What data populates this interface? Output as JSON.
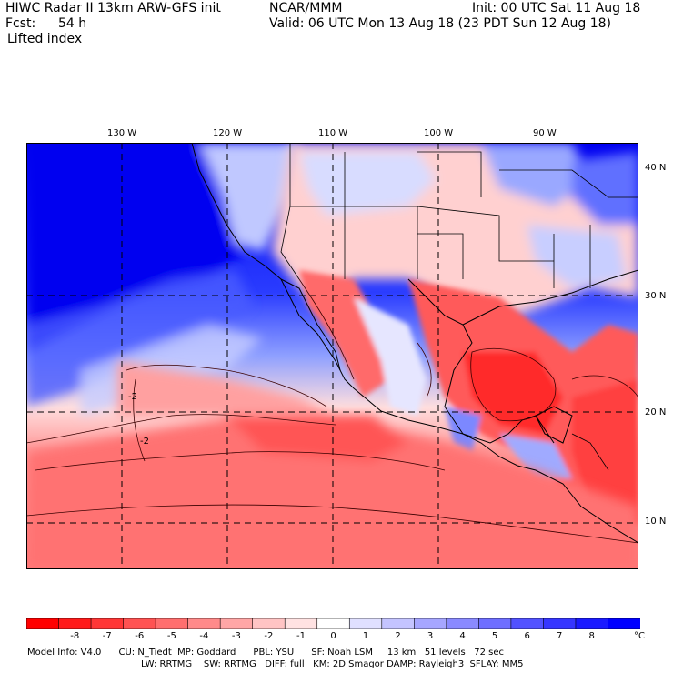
{
  "header": {
    "title": "HIWC Radar II 13km ARW-GFS init",
    "org": "NCAR/MMM",
    "init": "Init: 00 UTC Sat 11 Aug 18",
    "fcst_label": "Fcst:",
    "fcst_value": "54 h",
    "valid": "Valid: 06 UTC Mon 13 Aug 18 (23 PDT Sun 12 Aug 18)",
    "field": "Lifted index"
  },
  "axes": {
    "lon_labels": [
      "130 W",
      "120 W",
      "110 W",
      "100 W",
      "90 W"
    ],
    "lat_labels": [
      "40 N",
      "30 N",
      "20 N",
      "10 N"
    ]
  },
  "contour_labels": [
    "-2",
    "-2"
  ],
  "colorbar": {
    "labels": [
      "-8",
      "-7",
      "-6",
      "-5",
      "-4",
      "-3",
      "-2",
      "-1",
      "0",
      "1",
      "2",
      "3",
      "4",
      "5",
      "6",
      "7",
      "8"
    ],
    "unit": "°C",
    "colors": [
      "#ff0000",
      "#ff1a1a",
      "#ff3636",
      "#ff5252",
      "#ff6e6e",
      "#ff8a8a",
      "#ffa6a6",
      "#ffc4c4",
      "#ffe2e2",
      "#ffffff",
      "#e0e0ff",
      "#c4c4ff",
      "#a6a6ff",
      "#8a8aff",
      "#6e6eff",
      "#5252ff",
      "#3636ff",
      "#1a1aff",
      "#0000ff"
    ]
  },
  "footer": {
    "line1": "Model Info: V4.0      CU: N_Tiedt  MP: Goddard      PBL: YSU      SF: Noah LSM     13 km   51 levels   72 sec",
    "line2": "LW: RRTMG    SW: RRTMG   DIFF: full   KM: 2D Smagor DAMP: Rayleigh3  SFLAY: MM5"
  },
  "colors": {
    "stable": "#0000ff",
    "unstable": "#ff0000",
    "neutral": "#ffffff"
  }
}
